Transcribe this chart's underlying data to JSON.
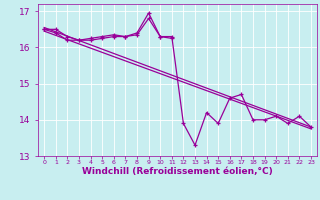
{
  "xlabel": "Windchill (Refroidissement éolien,°C)",
  "background_color": "#c8eef0",
  "line_color": "#990099",
  "xlim": [
    -0.5,
    23.5
  ],
  "ylim": [
    13.0,
    17.2
  ],
  "yticks": [
    13,
    14,
    15,
    16,
    17
  ],
  "xtick_labels": [
    "0",
    "1",
    "2",
    "3",
    "4",
    "5",
    "6",
    "7",
    "8",
    "9",
    "10",
    "11",
    "12",
    "13",
    "14",
    "15",
    "16",
    "17",
    "18",
    "19",
    "20",
    "21",
    "22",
    "23"
  ],
  "series1_x": [
    0,
    1,
    2,
    3,
    4,
    5,
    6,
    7,
    8,
    9,
    10,
    11,
    12,
    13,
    14,
    15,
    16,
    17,
    18,
    19,
    20,
    21,
    22,
    23
  ],
  "series1_y": [
    16.5,
    16.5,
    16.3,
    16.2,
    16.25,
    16.3,
    16.35,
    16.3,
    16.4,
    16.95,
    16.3,
    16.3,
    13.9,
    13.3,
    14.2,
    13.9,
    14.6,
    14.7,
    14.0,
    14.0,
    14.1,
    13.9,
    14.1,
    13.8
  ],
  "series2_x": [
    0,
    1,
    2,
    3,
    4,
    5,
    6,
    7,
    8,
    9,
    10,
    11
  ],
  "series2_y": [
    16.5,
    16.4,
    16.2,
    16.2,
    16.2,
    16.25,
    16.3,
    16.3,
    16.35,
    16.8,
    16.3,
    16.25
  ],
  "trend_x": [
    0,
    23
  ],
  "trend_y": [
    16.55,
    13.8
  ],
  "trend2_x": [
    0,
    23
  ],
  "trend2_y": [
    16.45,
    13.75
  ],
  "xlabel_fontsize": 6.5,
  "ytick_fontsize": 6.5,
  "xtick_fontsize": 4.5
}
